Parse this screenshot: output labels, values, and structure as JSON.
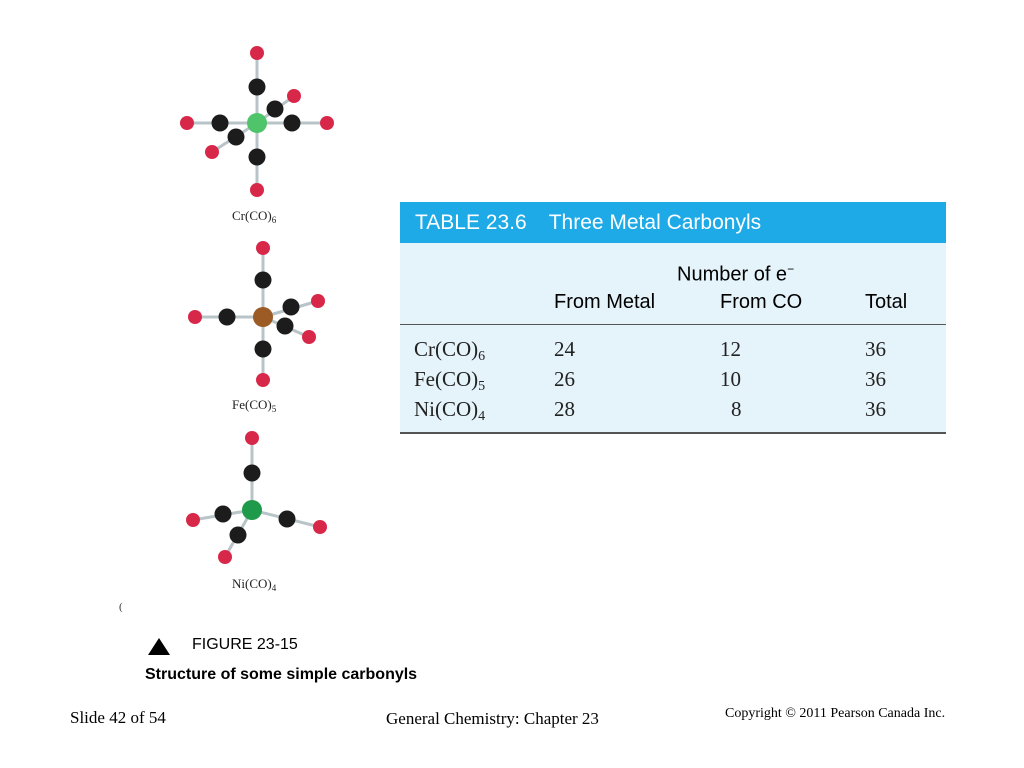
{
  "molecules": [
    {
      "formula": "Cr(CO)",
      "subscript": "6"
    },
    {
      "formula": "Fe(CO)",
      "subscript": "5"
    },
    {
      "formula": "Ni(CO)",
      "subscript": "4"
    }
  ],
  "colors": {
    "oxygen": "#d8284a",
    "carbon": "#1c1c1c",
    "chromium": "#4fc46a",
    "iron": "#9c5a24",
    "nickel": "#1f9a4a",
    "table_header": "#1eaae6",
    "table_body": "#e5f3fa"
  },
  "stray_mark": "(",
  "table": {
    "number": "TABLE 23.6",
    "title": "Three Metal Carbonyls",
    "group_label": "Number of e",
    "group_label_sup": "−",
    "columns": [
      "From Metal",
      "From CO",
      "Total"
    ],
    "rows": [
      {
        "formula": "Cr(CO)",
        "subscript": "6",
        "from_metal": "24",
        "from_co": "12",
        "total": "36"
      },
      {
        "formula": "Fe(CO)",
        "subscript": "5",
        "from_metal": "26",
        "from_co": "10",
        "total": "36"
      },
      {
        "formula": "Ni(CO)",
        "subscript": "4",
        "from_metal": "28",
        "from_co": "8",
        "total": "36"
      }
    ]
  },
  "figure": {
    "number": "FIGURE 23-15",
    "title": "Structure of some simple carbonyls"
  },
  "footer": {
    "slide": "Slide 42 of 54",
    "course": "General Chemistry: Chapter 23",
    "copyright": "Copyright © 2011 Pearson Canada Inc."
  }
}
